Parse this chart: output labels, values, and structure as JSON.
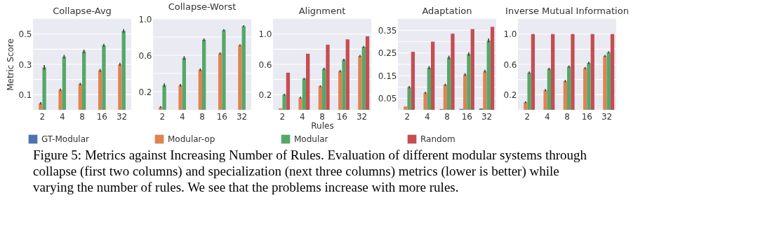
{
  "chart_data": [
    {
      "type": "bar",
      "title": "Collapse-Avg",
      "ylabel": "Metric Score",
      "categories": [
        "2",
        "4",
        "8",
        "16",
        "32"
      ],
      "ylim": [
        0,
        0.6
      ],
      "yticks": [
        0.1,
        {
          "value": 0.2,
          "label": null
        },
        0.3,
        {
          "value": 0.4,
          "label": null
        },
        0.5
      ],
      "grid": true,
      "legend": "bottom",
      "series": [
        {
          "name": "GT-Modular",
          "color": "#4c72b0",
          "values": [
            0,
            0,
            0,
            0,
            0
          ]
        },
        {
          "name": "Modular-op",
          "color": "#dd8452",
          "values": [
            0.043,
            0.132,
            0.17,
            0.26,
            0.3
          ],
          "errors": [
            0.008,
            0.008,
            0.008,
            0.01,
            0.01
          ]
        },
        {
          "name": "Modular",
          "color": "#55a868",
          "values": [
            0.28,
            0.35,
            0.385,
            0.425,
            0.52
          ],
          "errors": [
            0.015,
            0.012,
            0.012,
            0.01,
            0.012
          ]
        },
        {
          "name": "Random",
          "color": "#c44e52",
          "values": [
            null,
            null,
            null,
            null,
            null
          ]
        }
      ],
      "annotations": [
        "Figure 5: Metrics against Increasing Number of Rules. Evaluation of different modular systems through collapse (first two columns) and specialization (next three columns) metrics (lower is better) while varying the number of rules. We see that the problems increase with more rules."
      ]
    },
    {
      "type": "bar",
      "title": "Collapse-Worst",
      "categories": [
        "2",
        "4",
        "8",
        "16",
        "32"
      ],
      "ylim": [
        0,
        1.0
      ],
      "yticks": [
        {
          "value": 0.2,
          "label": "0.2"
        },
        {
          "value": 0.4,
          "label": null
        },
        {
          "value": 0.6,
          "label": "0.6"
        },
        {
          "value": 0.8,
          "label": null
        },
        {
          "value": 1.0,
          "label": "1.0"
        }
      ],
      "grid": true,
      "series": [
        {
          "color": "#4c72b0",
          "values": [
            0,
            0,
            0,
            0,
            0
          ]
        },
        {
          "color": "#dd8452",
          "values": [
            0.03,
            0.27,
            0.44,
            0.62,
            0.71
          ],
          "errors": [
            0.01,
            0.015,
            0.015,
            0.012,
            0.01
          ]
        },
        {
          "color": "#55a868",
          "values": [
            0.27,
            0.57,
            0.77,
            0.875,
            0.92
          ],
          "errors": [
            0.02,
            0.02,
            0.015,
            0.012,
            0.01
          ]
        },
        {
          "color": "#c44e52",
          "values": [
            null,
            null,
            null,
            null,
            null
          ]
        }
      ]
    },
    {
      "type": "bar",
      "title": "Alignment",
      "xlabel": "Rules",
      "categories": [
        "2",
        "4",
        "8",
        "16",
        "32"
      ],
      "ylim": [
        0,
        1.2
      ],
      "yticks": [
        {
          "value": 0.2,
          "label": "0.2"
        },
        {
          "value": 0.4,
          "label": null
        },
        {
          "value": 0.6,
          "label": "0.6"
        },
        {
          "value": 0.8,
          "label": null
        },
        {
          "value": 1.0,
          "label": "1.0"
        }
      ],
      "grid": true,
      "series": [
        {
          "color": "#4c72b0",
          "values": [
            0,
            0,
            0,
            0,
            0
          ]
        },
        {
          "color": "#dd8452",
          "values": [
            0.02,
            0.16,
            0.31,
            0.51,
            0.71
          ],
          "errors": [
            null,
            0.012,
            0.012,
            0.015,
            0.015
          ]
        },
        {
          "color": "#55a868",
          "values": [
            0.2,
            0.41,
            0.54,
            0.66,
            0.83
          ],
          "errors": [
            0.012,
            0.012,
            0.015,
            0.015,
            0.012
          ]
        },
        {
          "color": "#c44e52",
          "values": [
            0.49,
            0.74,
            0.86,
            0.93,
            0.97
          ]
        }
      ]
    },
    {
      "type": "bar",
      "title": "Adaptation",
      "categories": [
        "2",
        "4",
        "8",
        "16",
        "32"
      ],
      "ylim": [
        0,
        0.4
      ],
      "yticks": [
        0.05,
        {
          "value": 0.1,
          "label": null
        },
        0.15,
        {
          "value": 0.2,
          "label": null
        },
        0.25,
        {
          "value": 0.3,
          "label": null
        },
        0.35
      ],
      "grid": true,
      "series": [
        {
          "color": "#4c72b0",
          "values": [
            0,
            0,
            0.003,
            0.004,
            0.006
          ]
        },
        {
          "color": "#dd8452",
          "values": [
            0.015,
            0.075,
            0.11,
            0.155,
            0.17
          ],
          "errors": [
            null,
            0.004,
            0.005,
            0.006,
            0.006
          ]
        },
        {
          "color": "#55a868",
          "values": [
            0.1,
            0.185,
            0.23,
            0.245,
            0.305
          ],
          "errors": [
            0.005,
            0.007,
            0.008,
            0.008,
            0.009
          ]
        },
        {
          "color": "#c44e52",
          "values": [
            0.255,
            0.3,
            0.335,
            0.355,
            0.365
          ]
        }
      ]
    },
    {
      "type": "bar",
      "title": "Inverse Mutual Information",
      "categories": [
        "2",
        "4",
        "8",
        "16",
        "32"
      ],
      "ylim": [
        0,
        1.2
      ],
      "yticks": [
        {
          "value": 0.2,
          "label": "0.2"
        },
        {
          "value": 0.4,
          "label": null
        },
        {
          "value": 0.6,
          "label": "0.6"
        },
        {
          "value": 0.8,
          "label": null
        },
        {
          "value": 1.0,
          "label": "1.0"
        }
      ],
      "grid": true,
      "series": [
        {
          "color": "#4c72b0",
          "values": [
            0,
            0,
            0,
            0,
            0
          ]
        },
        {
          "color": "#dd8452",
          "values": [
            0.1,
            0.26,
            0.38,
            0.55,
            0.71
          ],
          "errors": [
            0.012,
            0.012,
            0.015,
            0.015,
            0.015
          ]
        },
        {
          "color": "#55a868",
          "values": [
            0.49,
            0.54,
            0.57,
            0.62,
            0.76
          ],
          "errors": [
            0.015,
            0.015,
            0.015,
            0.015,
            0.012
          ]
        },
        {
          "color": "#c44e52",
          "values": [
            1.0,
            1.0,
            1.0,
            1.0,
            1.0
          ]
        }
      ]
    }
  ]
}
